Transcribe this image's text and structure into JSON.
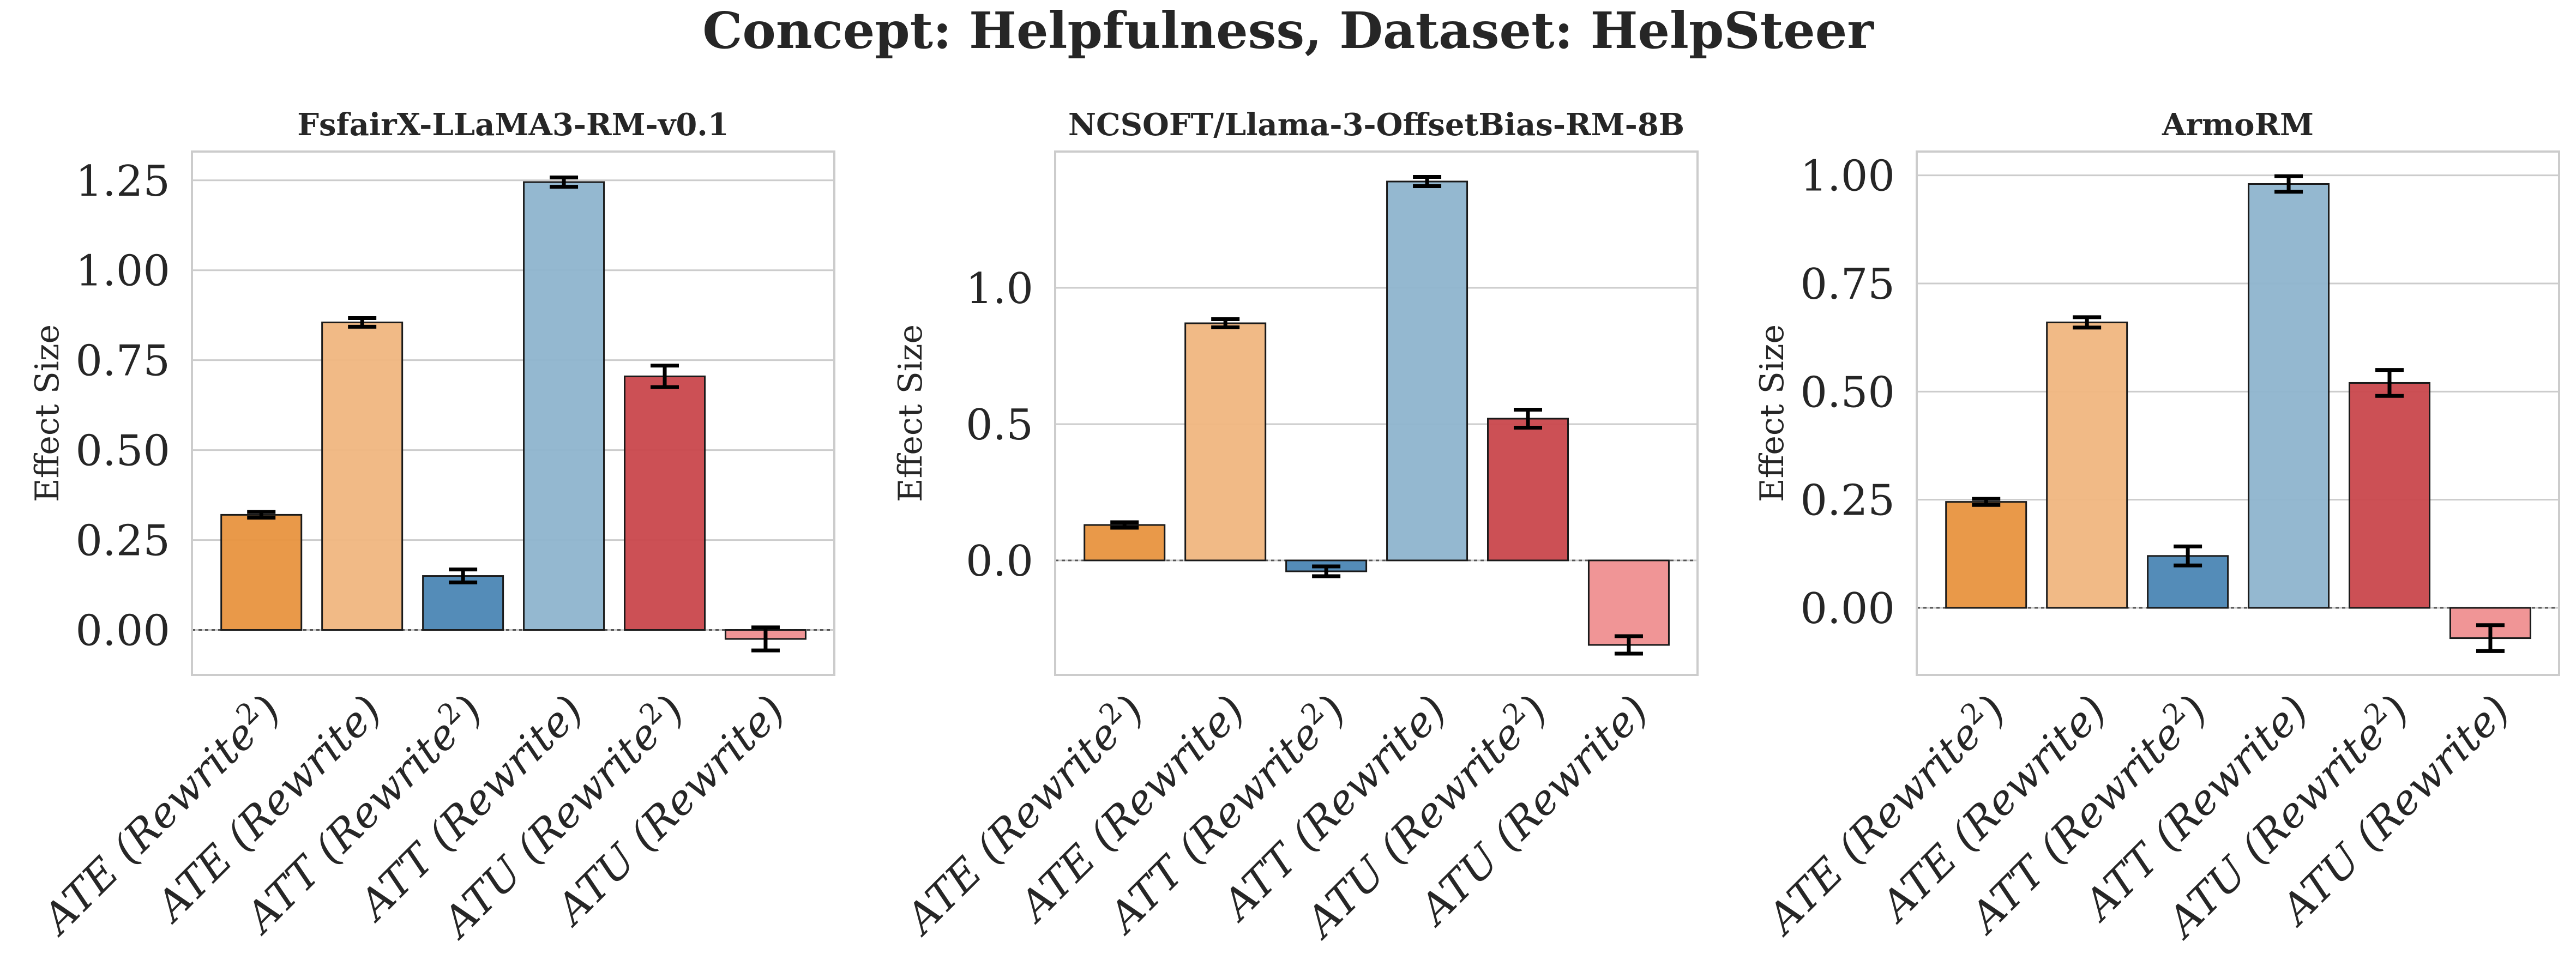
{
  "figure_title": "Concept: Helpfulness, Dataset: HelpSteer",
  "ylabel": "Effect Size",
  "categories": [
    {
      "base": "ATE (Rewrite",
      "sup": "2",
      "close": ")"
    },
    {
      "base": "ATE (Rewrite)",
      "sup": "",
      "close": ""
    },
    {
      "base": "ATT (Rewrite",
      "sup": "2",
      "close": ")"
    },
    {
      "base": "ATT (Rewrite)",
      "sup": "",
      "close": ""
    },
    {
      "base": "ATU (Rewrite",
      "sup": "2",
      "close": ")"
    },
    {
      "base": "ATU (Rewrite)",
      "sup": "",
      "close": ""
    }
  ],
  "bar_colors": [
    "#e8943f",
    "#f0b680",
    "#4b86b4",
    "#8eb4cd",
    "#c9474c",
    "#ef8f90"
  ],
  "chart_data": [
    {
      "type": "bar",
      "title": "FsfairX-LLaMA3-RM-v0.1",
      "ylabel": "Effect Size",
      "values": [
        0.32,
        0.855,
        0.15,
        1.245,
        0.705,
        -0.025
      ],
      "errors": [
        0.008,
        0.012,
        0.018,
        0.013,
        0.03,
        0.032
      ],
      "ylim": [
        -0.125,
        1.33
      ],
      "yticks": [
        0.0,
        0.25,
        0.5,
        0.75,
        1.0,
        1.25
      ],
      "ytick_labels": [
        "0.00",
        "0.25",
        "0.50",
        "0.75",
        "1.00",
        "1.25"
      ],
      "grid": true
    },
    {
      "type": "bar",
      "title": "NCSOFT/Llama-3-OffsetBias-RM-8B",
      "ylabel": "Effect Size",
      "values": [
        0.13,
        0.87,
        -0.04,
        1.39,
        0.52,
        -0.31
      ],
      "errors": [
        0.01,
        0.015,
        0.018,
        0.017,
        0.033,
        0.032
      ],
      "ylim": [
        -0.42,
        1.5
      ],
      "yticks": [
        0.0,
        0.5,
        1.0
      ],
      "ytick_labels": [
        "0.0",
        "0.5",
        "1.0"
      ],
      "grid": true
    },
    {
      "type": "bar",
      "title": "ArmoRM",
      "ylabel": "Effect Size",
      "values": [
        0.245,
        0.66,
        0.12,
        0.98,
        0.52,
        -0.07
      ],
      "errors": [
        0.007,
        0.012,
        0.022,
        0.018,
        0.03,
        0.03
      ],
      "ylim": [
        -0.155,
        1.055
      ],
      "yticks": [
        0.0,
        0.25,
        0.5,
        0.75,
        1.0
      ],
      "ytick_labels": [
        "0.00",
        "0.25",
        "0.50",
        "0.75",
        "1.00"
      ],
      "grid": true
    }
  ]
}
